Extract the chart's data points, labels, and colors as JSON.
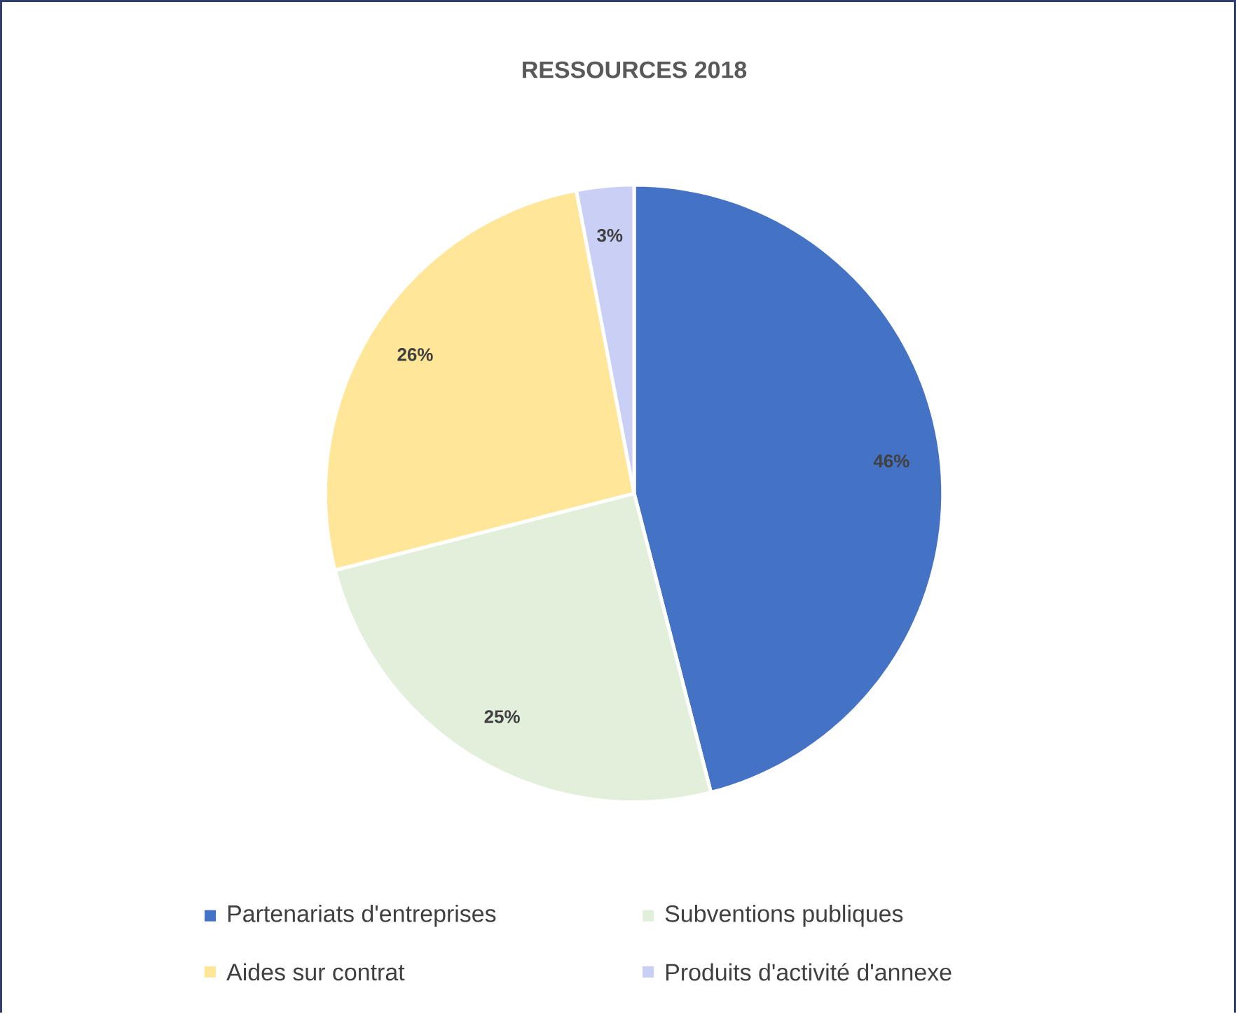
{
  "chart_data": {
    "type": "pie",
    "title": "RESSOURCES 2018",
    "categories": [
      "Partenariats d'entreprises",
      "Subventions publiques",
      "Aides sur contrat",
      "Produits d'activité d'annexe"
    ],
    "values": [
      46,
      25,
      26,
      3
    ],
    "colors": [
      "#4472c4",
      "#e2efda",
      "#ffe699",
      "#c9cff5"
    ],
    "value_labels": [
      "46%",
      "25%",
      "26%",
      "3%"
    ],
    "legend": "bottom"
  }
}
